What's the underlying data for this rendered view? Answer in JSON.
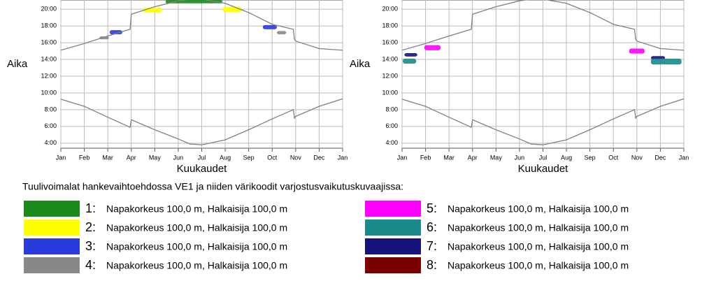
{
  "chart_data": [
    {
      "type": "line",
      "y_label": "Aika",
      "x_label": "Kuukaudet",
      "xlim": [
        0,
        12
      ],
      "xticks": [
        {
          "value": 0,
          "label": "Jan"
        },
        {
          "value": 1,
          "label": "Feb"
        },
        {
          "value": 2,
          "label": "Mar"
        },
        {
          "value": 3,
          "label": "Apr"
        },
        {
          "value": 4,
          "label": "May"
        },
        {
          "value": 5,
          "label": "Jun"
        },
        {
          "value": 6,
          "label": "Jul"
        },
        {
          "value": 7,
          "label": "Aug"
        },
        {
          "value": 8,
          "label": "Sep"
        },
        {
          "value": 9,
          "label": "Oct"
        },
        {
          "value": 10,
          "label": "Nov"
        },
        {
          "value": 11,
          "label": "Dec"
        },
        {
          "value": 12,
          "label": "Jan"
        }
      ],
      "ylim": [
        3.4,
        21.1
      ],
      "yticks": [
        {
          "value": 4,
          "label": "4:00"
        },
        {
          "value": 6,
          "label": "6:00"
        },
        {
          "value": 8,
          "label": "8:00"
        },
        {
          "value": 10,
          "label": "10:00"
        },
        {
          "value": 12,
          "label": "12:00"
        },
        {
          "value": 14,
          "label": "14:00"
        },
        {
          "value": 16,
          "label": "16:00"
        },
        {
          "value": 18,
          "label": "18:00"
        },
        {
          "value": 20,
          "label": "20:00"
        }
      ],
      "grid": true,
      "x": [
        0,
        1,
        2,
        2.95,
        3,
        4,
        5,
        5.5,
        6,
        7,
        8,
        9,
        9.9,
        9.95,
        10,
        11,
        12
      ],
      "series": [
        {
          "color": "#808080",
          "values": [
            15.1,
            15.9,
            16.8,
            17.6,
            19.4,
            20.3,
            21.0,
            21.2,
            21.2,
            20.7,
            19.6,
            18.2,
            17.6,
            16.4,
            16.2,
            15.3,
            15.1
          ]
        },
        {
          "color": "#808080",
          "values": [
            9.25,
            8.4,
            7.1,
            5.9,
            6.8,
            5.6,
            4.5,
            3.9,
            3.8,
            4.4,
            5.6,
            6.9,
            8.0,
            7.0,
            7.2,
            8.4,
            9.3
          ]
        }
      ],
      "shadows": [
        {
          "color": "#1a8a1a",
          "x": [
            4.46,
            6.88
          ],
          "y": [
            20.7,
            21.1
          ]
        },
        {
          "color": "#ffff00",
          "x": [
            3.5,
            4.3
          ],
          "y": [
            19.6,
            20.2
          ]
        },
        {
          "color": "#ffff00",
          "x": [
            6.9,
            7.7
          ],
          "y": [
            19.65,
            20.3
          ]
        },
        {
          "color": "#2a3bdc",
          "x": [
            2.08,
            2.62
          ],
          "y": [
            17.0,
            17.5
          ]
        },
        {
          "color": "#888888",
          "x": [
            1.64,
            2.05
          ],
          "y": [
            16.4,
            16.75
          ]
        },
        {
          "color": "#2a3bdc",
          "x": [
            8.6,
            9.2
          ],
          "y": [
            17.6,
            18.1
          ]
        },
        {
          "color": "#888888",
          "x": [
            9.2,
            9.6
          ],
          "y": [
            17.0,
            17.4
          ]
        }
      ]
    },
    {
      "type": "line",
      "y_label": "Aika",
      "x_label": "Kuukaudet",
      "xlim": [
        0,
        12
      ],
      "xticks": [
        {
          "value": 0,
          "label": "Jan"
        },
        {
          "value": 1,
          "label": "Feb"
        },
        {
          "value": 2,
          "label": "Mar"
        },
        {
          "value": 3,
          "label": "Apr"
        },
        {
          "value": 4,
          "label": "May"
        },
        {
          "value": 5,
          "label": "Jun"
        },
        {
          "value": 6,
          "label": "Jul"
        },
        {
          "value": 7,
          "label": "Aug"
        },
        {
          "value": 8,
          "label": "Sep"
        },
        {
          "value": 9,
          "label": "Oct"
        },
        {
          "value": 10,
          "label": "Nov"
        },
        {
          "value": 11,
          "label": "Dec"
        },
        {
          "value": 12,
          "label": "Jan"
        }
      ],
      "ylim": [
        3.4,
        21.1
      ],
      "yticks": [
        {
          "value": 4,
          "label": "4:00"
        },
        {
          "value": 6,
          "label": "6:00"
        },
        {
          "value": 8,
          "label": "8:00"
        },
        {
          "value": 10,
          "label": "10:00"
        },
        {
          "value": 12,
          "label": "12:00"
        },
        {
          "value": 14,
          "label": "14:00"
        },
        {
          "value": 16,
          "label": "16:00"
        },
        {
          "value": 18,
          "label": "18:00"
        },
        {
          "value": 20,
          "label": "20:00"
        }
      ],
      "grid": true,
      "x": [
        0,
        1,
        2,
        2.95,
        3,
        4,
        5,
        5.5,
        6,
        7,
        8,
        9,
        9.9,
        9.95,
        10,
        11,
        12
      ],
      "series": [
        {
          "color": "#808080",
          "values": [
            15.1,
            15.9,
            16.8,
            17.6,
            19.4,
            20.3,
            21.0,
            21.2,
            21.2,
            20.7,
            19.6,
            18.2,
            17.6,
            16.4,
            16.2,
            15.3,
            15.1
          ]
        },
        {
          "color": "#808080",
          "values": [
            9.25,
            8.4,
            7.1,
            5.9,
            6.8,
            5.6,
            4.5,
            3.9,
            3.8,
            4.4,
            5.6,
            6.9,
            8.0,
            7.0,
            7.2,
            8.4,
            9.3
          ]
        }
      ],
      "shadows": [
        {
          "color": "#14147a",
          "x": [
            0.1,
            0.65
          ],
          "y": [
            14.35,
            14.75
          ]
        },
        {
          "color": "#1a8a8a",
          "x": [
            0.03,
            0.6
          ],
          "y": [
            13.5,
            14.1
          ]
        },
        {
          "color": "#ff00ff",
          "x": [
            0.95,
            1.64
          ],
          "y": [
            15.1,
            15.7
          ]
        },
        {
          "color": "#ff00ff",
          "x": [
            9.67,
            10.33
          ],
          "y": [
            14.7,
            15.3
          ]
        },
        {
          "color": "#14147a",
          "x": [
            10.6,
            11.2
          ],
          "y": [
            14.0,
            14.4
          ]
        },
        {
          "color": "#1a8a8a",
          "x": [
            10.6,
            11.9
          ],
          "y": [
            13.4,
            14.1
          ]
        }
      ]
    }
  ],
  "caption": "Tuulivoimalat hankevaihtoehdossa VE1 ja niiden värikoodit varjostusvaikutuskuvaajissa:",
  "legend": [
    {
      "number": "1:",
      "text": "Napakorkeus 100,0 m, Halkaisija 100,0 m",
      "color": "#1a8a1a"
    },
    {
      "number": "2:",
      "text": "Napakorkeus 100,0 m, Halkaisija 100,0 m",
      "color": "#ffff00"
    },
    {
      "number": "3:",
      "text": "Napakorkeus 100,0 m, Halkaisija 100,0 m",
      "color": "#2a3bdc"
    },
    {
      "number": "4:",
      "text": "Napakorkeus 100,0 m, Halkaisija 100,0 m",
      "color": "#888888"
    },
    {
      "number": "5:",
      "text": "Napakorkeus 100,0 m, Halkaisija 100,0 m",
      "color": "#ff00ff"
    },
    {
      "number": "6:",
      "text": "Napakorkeus 100,0 m, Halkaisija 100,0 m",
      "color": "#1a8a8a"
    },
    {
      "number": "7:",
      "text": "Napakorkeus 100,0 m, Halkaisija 100,0 m",
      "color": "#14147a"
    },
    {
      "number": "8:",
      "text": "Napakorkeus 100,0 m, Halkaisija 100,0 m",
      "color": "#7a0000"
    }
  ]
}
